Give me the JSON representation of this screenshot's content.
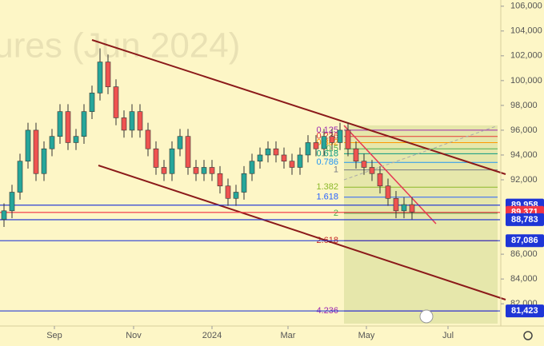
{
  "chart_data": {
    "type": "candlestick",
    "watermark": "tures (Jun 2024)",
    "open": [
      88800,
      89500,
      91000,
      93500,
      96000,
      92500,
      94500,
      95500,
      97500,
      95000,
      95500,
      97500,
      99000,
      101500,
      99500,
      97000,
      96000,
      97500,
      96000,
      94500,
      93000,
      92500,
      94500,
      95500,
      93000,
      92500,
      93000,
      92500,
      91500,
      90500,
      91000,
      92500,
      93500,
      94000,
      94500,
      94000,
      93500,
      93000,
      94000,
      95000,
      94500,
      95500,
      95000,
      96000,
      94500,
      93500,
      93000,
      92500,
      91500,
      90500,
      89500,
      90000
    ],
    "high": [
      90100,
      91600,
      94100,
      96600,
      96600,
      95100,
      96100,
      98100,
      98100,
      96100,
      98100,
      99600,
      102600,
      102100,
      100100,
      97600,
      98100,
      98100,
      96600,
      95100,
      93600,
      95100,
      96100,
      96100,
      93600,
      93600,
      93600,
      93100,
      92100,
      91600,
      93100,
      94100,
      94600,
      95100,
      95100,
      94600,
      94100,
      94600,
      95600,
      95600,
      96100,
      96100,
      96600,
      96600,
      95100,
      94100,
      93600,
      93100,
      92100,
      91100,
      90600,
      90600
    ],
    "low": [
      88200,
      88900,
      90400,
      92900,
      91900,
      91900,
      93900,
      94900,
      94400,
      94400,
      94900,
      96900,
      98400,
      98900,
      96400,
      95400,
      95400,
      95400,
      93900,
      92400,
      91900,
      91900,
      93900,
      92400,
      91900,
      91900,
      91900,
      90900,
      89900,
      89900,
      90400,
      91900,
      92900,
      93400,
      93400,
      92900,
      92400,
      92400,
      93400,
      93900,
      93900,
      94400,
      94400,
      93900,
      92900,
      92400,
      91900,
      90900,
      89900,
      88900,
      88900,
      88800
    ],
    "close": [
      89500,
      91000,
      93500,
      96000,
      92500,
      94500,
      95500,
      97500,
      95000,
      95500,
      97500,
      99000,
      101500,
      99500,
      97000,
      96000,
      97500,
      96000,
      94500,
      93000,
      92500,
      94500,
      95500,
      93000,
      92500,
      93000,
      92500,
      91500,
      90500,
      91000,
      92500,
      93500,
      94000,
      94500,
      94000,
      93500,
      93000,
      94000,
      95000,
      94500,
      95500,
      95000,
      96000,
      94500,
      93500,
      93000,
      92500,
      91500,
      90500,
      89500,
      90000,
      89400
    ],
    "up_color": "#26a69a",
    "down_color": "#ef5350",
    "xlim": [
      0,
      62.5
    ],
    "xticks": [
      {
        "value": 6.8,
        "label": "Sep"
      },
      {
        "value": 16.7,
        "label": "Nov"
      },
      {
        "value": 26.5,
        "label": "2024"
      },
      {
        "value": 36,
        "label": "Mar"
      },
      {
        "value": 45.8,
        "label": "May"
      },
      {
        "value": 56,
        "label": "Jul"
      }
    ],
    "ylim": [
      80400,
      106500
    ],
    "yticks": [
      {
        "value": 82000,
        "label": "82,000"
      },
      {
        "value": 84000,
        "label": "84,000"
      },
      {
        "value": 86000,
        "label": "86,000"
      },
      {
        "value": 92000,
        "label": "92,000"
      },
      {
        "value": 94000,
        "label": "94,000"
      },
      {
        "value": 96000,
        "label": "96,000"
      },
      {
        "value": 98000,
        "label": "98,000"
      },
      {
        "value": 100000,
        "label": "100,000"
      },
      {
        "value": 102000,
        "label": "102,000"
      },
      {
        "value": 104000,
        "label": "104,000"
      },
      {
        "value": 106000,
        "label": "106,000"
      }
    ],
    "grid": false,
    "price_lines": [
      {
        "value": 89958,
        "label": "89,958",
        "color": "#1e35d6"
      },
      {
        "value": 89371,
        "label": "89,371",
        "color": "#f23645"
      },
      {
        "value": 88783,
        "label": "88,783",
        "color": "#1e35d6"
      },
      {
        "value": 87086,
        "label": "87,086",
        "color": "#1e35d6"
      },
      {
        "value": 81423,
        "label": "81,423",
        "color": "#1e35d6"
      }
    ],
    "fib_levels": [
      {
        "label": "0.125",
        "value": 96000,
        "color": "#9c27b0"
      },
      {
        "label": "0.236",
        "value": 95500,
        "color": "#e53935"
      },
      {
        "label": "0.382",
        "value": 95000,
        "color": "#ff9800"
      },
      {
        "label": "0.5",
        "value": 94500,
        "color": "#4caf50"
      },
      {
        "label": "0.618",
        "value": 94100,
        "color": "#089981"
      },
      {
        "label": "0.786",
        "value": 93400,
        "color": "#2196f3"
      },
      {
        "label": "1",
        "value": 92800,
        "color": "#787b86"
      },
      {
        "label": "1.382",
        "value": 91400,
        "color": "#8bb82a"
      },
      {
        "label": "1.618",
        "value": 90600,
        "color": "#2962ff"
      },
      {
        "label": "2",
        "value": 89300,
        "color": "#4caf50"
      },
      {
        "label": "2.618",
        "value": 87086,
        "color": "#c62828"
      },
      {
        "label": "4.236",
        "value": 81423,
        "color": "#9c27b0"
      }
    ]
  }
}
